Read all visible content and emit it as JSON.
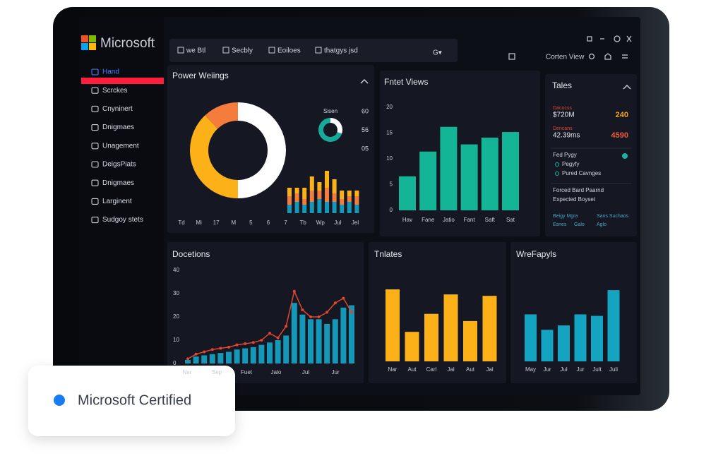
{
  "brand": "Microsoft",
  "toolbar": {
    "tabs": [
      "we Btl",
      "Secbly",
      "Eoiloes",
      "thatgys jsd"
    ],
    "dropdown": "G▾"
  },
  "window": {
    "view": "Corten View"
  },
  "sidebar": [
    "Hand",
    "Scrckes",
    "Cnyninert",
    "Dnigmaes",
    "Unagement",
    "DeigsPiats",
    "Dnigmaes",
    "Larginent",
    "Sudgoy stets"
  ],
  "power": {
    "title": "Power Weiings",
    "donut": {
      "values": [
        12,
        38,
        50
      ],
      "colors": [
        "#f47c3c",
        "#fbb117",
        "#ffffff"
      ]
    },
    "mini_donut": {
      "values": [
        70,
        30
      ],
      "colors": [
        "#17a99a",
        "#ffffff"
      ]
    },
    "legend": "Sisen",
    "side_values": [
      "60",
      "56",
      "05"
    ],
    "mini_bars": {
      "series": [
        {
          "color": "#1597b8",
          "values": [
            3,
            4,
            3,
            4,
            5,
            4,
            4,
            3,
            4,
            3
          ]
        },
        {
          "color": "#f47c3c",
          "values": [
            3,
            3,
            2,
            4,
            3,
            5,
            3,
            2,
            2,
            3
          ]
        },
        {
          "color": "#fbb117",
          "values": [
            3,
            2,
            4,
            5,
            3,
            6,
            5,
            3,
            2,
            2
          ]
        }
      ]
    },
    "x_labels": [
      "Td",
      "Mi",
      "17",
      "M",
      "5",
      "6",
      "7",
      "Tb",
      "Wp",
      "Jul",
      "Jel"
    ]
  },
  "views": {
    "title": "Fntet Views",
    "categories": [
      "Hav",
      "Fane",
      "Jatio",
      "Fant",
      "Saft",
      "Sat"
    ],
    "values": [
      6.6,
      11.4,
      16.2,
      12.8,
      14.1,
      15.2
    ],
    "color": "#13b596",
    "ylim": [
      0,
      20
    ],
    "yticks": [
      0,
      5,
      10,
      15,
      20
    ]
  },
  "tales": {
    "title": "Tales",
    "rows": [
      {
        "label": "Dacocss",
        "value": "$720M",
        "figure": "240"
      },
      {
        "label": "Dencans",
        "value": "42.39ms",
        "figure": "4590"
      }
    ],
    "group": {
      "title": "Fed Pygy",
      "items": [
        "Pegyfy",
        "Pured Cavnges"
      ]
    },
    "notes": [
      "Forced Bard Paarnd",
      "Expected Boyset"
    ],
    "links": [
      "Beigy Mgra",
      "Sans Suchaos",
      "Esnes",
      "Galo",
      "Aglo"
    ]
  },
  "docetions": {
    "title": "Docetions",
    "bars": {
      "color": "#1597b8",
      "values": [
        1.5,
        3,
        3.5,
        4,
        4.5,
        5,
        6,
        6.5,
        7,
        8,
        9,
        10,
        12,
        26,
        21,
        19,
        19,
        17,
        19,
        24,
        25
      ]
    },
    "line": {
      "color": "#e0452e",
      "values": [
        2,
        4,
        5,
        6,
        6.5,
        7,
        8,
        8.5,
        9,
        10,
        13,
        11,
        16,
        31,
        23,
        20,
        20,
        22,
        26,
        28,
        22
      ]
    },
    "ylim": [
      0,
      40
    ],
    "yticks": [
      0,
      10,
      20,
      30,
      40
    ],
    "categories": [
      "Nar",
      "Sep",
      "Fuet",
      "Jalo",
      "Jul",
      "Jur"
    ]
  },
  "tnlates": {
    "title": "Tnlates",
    "categories": [
      "Nar",
      "Aut",
      "Carl",
      "Jal",
      "Aut",
      "Jal"
    ],
    "values": [
      10,
      4.1,
      6.6,
      9.3,
      5.6,
      9.1
    ],
    "color": "#fbb117"
  },
  "wrefapyls": {
    "title": "WreFapyls",
    "categories": [
      "May",
      "Jur",
      "Jul",
      "Jur",
      "Jult",
      "Juli"
    ],
    "values": [
      6.4,
      4.3,
      4.9,
      6.4,
      6.2,
      9.7
    ],
    "color": "#14a3c0"
  },
  "badge": {
    "text": "Microsoft Certified"
  }
}
